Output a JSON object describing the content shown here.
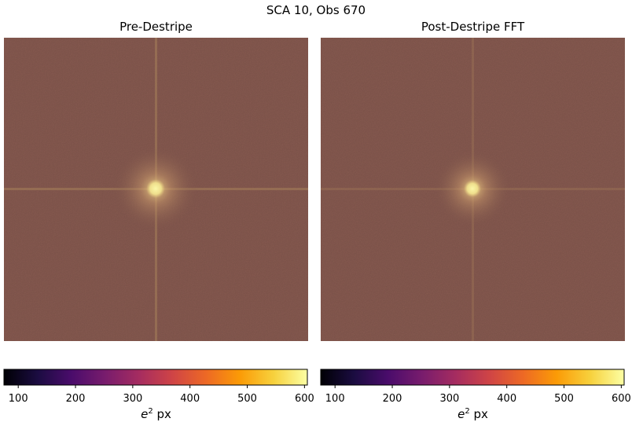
{
  "suptitle": "SCA 10, Obs 670",
  "panels": [
    {
      "title": "Pre-Destripe",
      "description": "2D power spectrum, bright peak at center with faint horizontal and vertical streak lines",
      "colorbar": {
        "label_var": "e",
        "label_exp": "2",
        "label_unit": "px"
      }
    },
    {
      "title": "Post-Destripe FFT",
      "description": "2D power spectrum, bright peak at center with reduced streaks",
      "colorbar": {
        "label_var": "e",
        "label_exp": "2",
        "label_unit": "px"
      }
    }
  ],
  "chart_data": {
    "type": "heatmap",
    "colormap": "inferno",
    "colorbar_range": [
      75,
      605
    ],
    "colorbar_ticks": [
      100,
      200,
      300,
      400,
      500,
      600
    ],
    "colorbar_label": "e^2 px",
    "background_level": 430,
    "peak_level": 605,
    "colors": {
      "cmap_stops": [
        "#000004",
        "#1b0c41",
        "#4a0c6b",
        "#781c6d",
        "#a52c60",
        "#cf4446",
        "#ed6925",
        "#fb9b06",
        "#f7d13d",
        "#fcffa4"
      ],
      "background": "#7a5148",
      "peak": "#fbf7a8"
    }
  }
}
